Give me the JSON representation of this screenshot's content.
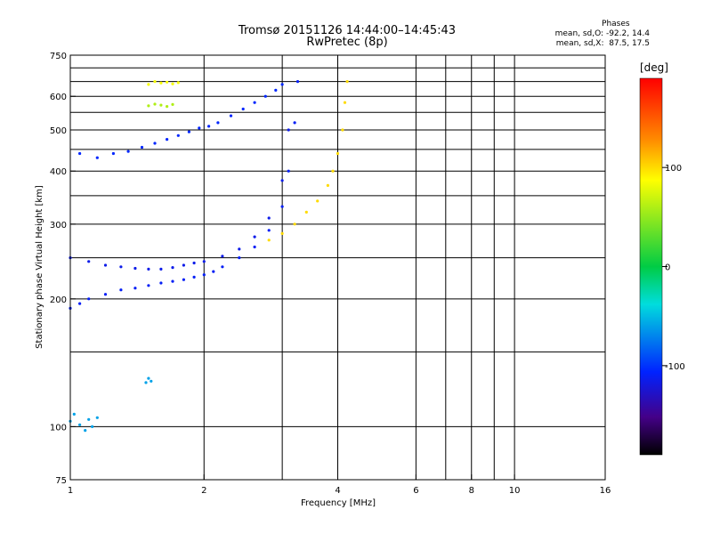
{
  "chart_data": {
    "type": "scatter",
    "title": "Tromsø 20151126 14:44:00–14:45:43",
    "subtitle": "RwPretec (8p)",
    "xlabel": "Frequency [MHz]",
    "ylabel": "Stationary phase Virtual Height [km]",
    "x_scale": "log",
    "y_scale": "log",
    "xlim": [
      1,
      16
    ],
    "ylim": [
      75,
      750
    ],
    "x_ticks": [
      1,
      2,
      4,
      6,
      8,
      10,
      16
    ],
    "x_grid": [
      2,
      3,
      4,
      6,
      7,
      8,
      9,
      10
    ],
    "y_ticks": [
      75,
      100,
      200,
      300,
      400,
      500,
      600,
      750
    ],
    "y_grid": [
      100,
      150,
      200,
      250,
      300,
      350,
      400,
      450,
      500,
      550,
      600,
      650,
      700
    ],
    "grid": true,
    "colorbar": {
      "label": "[deg]",
      "range": [
        -190,
        190
      ],
      "ticks": [
        100,
        0,
        -100
      ]
    },
    "stats": {
      "heading": "Phases",
      "line1": "mean, sd,O: -92.2, 14.4",
      "line2": "mean, sd,X:  87.5, 17.5"
    },
    "series": [
      {
        "name": "",
        "color_phase": -110,
        "x": [
          1.0,
          1.05,
          1.1,
          1.2,
          1.3,
          1.4,
          1.5,
          1.6,
          1.7,
          1.8,
          1.9,
          2.0,
          2.1,
          2.2,
          2.4,
          2.6,
          2.8,
          3.0,
          3.1,
          3.2,
          3.25
        ],
        "y": [
          190,
          195,
          200,
          205,
          210,
          212,
          215,
          218,
          220,
          222,
          225,
          228,
          232,
          238,
          250,
          265,
          290,
          330,
          400,
          520,
          650
        ]
      },
      {
        "name": "",
        "color_phase": -115,
        "x": [
          1.0,
          1.1,
          1.2,
          1.3,
          1.4,
          1.5,
          1.6,
          1.7,
          1.8,
          1.9,
          2.0,
          2.2,
          2.4,
          2.6,
          2.8,
          3.0,
          3.1
        ],
        "y": [
          250,
          245,
          240,
          238,
          236,
          235,
          235,
          237,
          240,
          243,
          245,
          252,
          262,
          280,
          310,
          380,
          500
        ]
      },
      {
        "name": "",
        "color_phase": -105,
        "x": [
          1.05,
          1.15,
          1.25,
          1.35,
          1.45,
          1.55,
          1.65,
          1.75,
          1.85,
          1.95,
          2.05,
          2.15,
          2.3,
          2.45,
          2.6,
          2.75,
          2.9,
          3.0
        ],
        "y": [
          440,
          430,
          440,
          445,
          455,
          465,
          475,
          485,
          495,
          505,
          510,
          520,
          540,
          560,
          580,
          600,
          620,
          640
        ]
      },
      {
        "name": "",
        "color_phase": 100,
        "x": [
          2.8,
          3.0,
          3.2,
          3.4,
          3.6,
          3.8,
          3.9,
          4.0,
          4.1,
          4.15,
          4.2
        ],
        "y": [
          275,
          285,
          300,
          320,
          340,
          370,
          400,
          440,
          500,
          580,
          650
        ]
      },
      {
        "name": "",
        "color_phase": 85,
        "x": [
          1.5,
          1.55,
          1.6,
          1.65,
          1.7,
          1.75
        ],
        "y": [
          640,
          650,
          645,
          648,
          642,
          646
        ]
      },
      {
        "name": "",
        "color_phase": 60,
        "x": [
          1.5,
          1.55,
          1.6,
          1.65,
          1.7
        ],
        "y": [
          570,
          575,
          572,
          568,
          574
        ]
      },
      {
        "name": "",
        "color_phase": -60,
        "x": [
          1.0,
          1.02,
          1.05,
          1.08,
          1.1,
          1.12,
          1.15,
          1.5,
          1.52,
          1.48
        ],
        "y": [
          103,
          107,
          101,
          98,
          104,
          100,
          105,
          130,
          128,
          127
        ]
      }
    ]
  }
}
